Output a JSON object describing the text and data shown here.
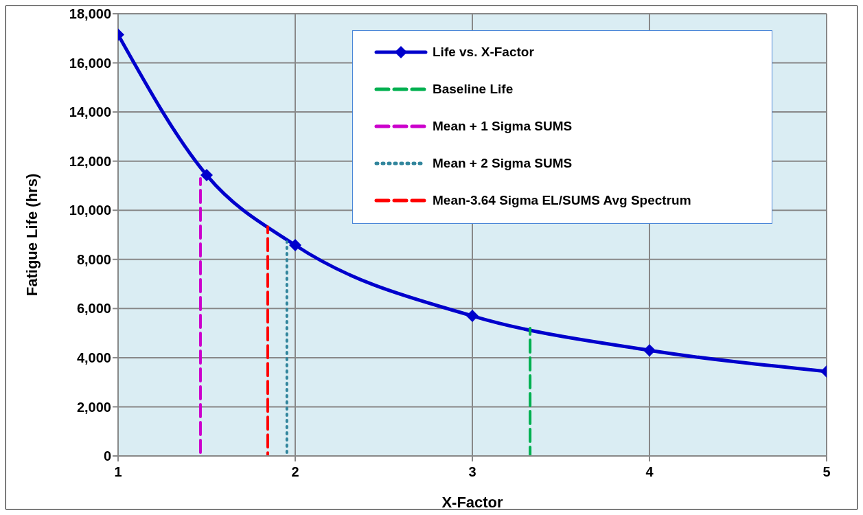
{
  "chart_data": {
    "type": "line",
    "xlabel": "X-Factor",
    "ylabel": "Fatigue Life (hrs)",
    "xlim": [
      1,
      5
    ],
    "xticks": [
      1,
      2,
      3,
      4,
      5
    ],
    "ylim": [
      0,
      18000
    ],
    "yticks": [
      0,
      {
        "value": 2000,
        "label": "2,000"
      },
      {
        "value": 4000,
        "label": "4,000"
      },
      {
        "value": 6000,
        "label": "6,000"
      },
      {
        "value": 8000,
        "label": "8,000"
      },
      {
        "value": 10000,
        "label": "10,000"
      },
      {
        "value": 12000,
        "label": "12,000"
      },
      {
        "value": 14000,
        "label": "14,000"
      },
      {
        "value": 16000,
        "label": "16,000"
      },
      {
        "value": 18000,
        "label": "18,000"
      }
    ],
    "grid": true,
    "legend": "top right",
    "series": [
      {
        "name": "Life vs. X-Factor",
        "color": "#0000cc",
        "x": [
          1,
          1.5,
          2,
          3,
          4,
          5
        ],
        "values": [
          17150,
          11430,
          8580,
          5700,
          4300,
          3440
        ],
        "marker": "diamond",
        "line_style": "solid"
      },
      {
        "name": "Baseline Life",
        "color": "#00b050",
        "x": [
          3.326,
          3.326
        ],
        "values": [
          0,
          5200
        ],
        "marker": "none",
        "line_style": "dashed"
      },
      {
        "name": "Mean + 1 Sigma SUMS",
        "color": "#cc00cc",
        "x": [
          1.465,
          1.465
        ],
        "values": [
          0,
          11290
        ],
        "marker": "none",
        "line_style": "dashed"
      },
      {
        "name": "Mean + 2 Sigma SUMS",
        "color": "#31859c",
        "x": [
          1.953,
          1.953
        ],
        "values": [
          0,
          8720
        ],
        "marker": "none",
        "line_style": "dotted"
      },
      {
        "name": "Mean-3.64 Sigma EL/SUMS Avg Spectrum",
        "color": "#ff0000",
        "x": [
          1.845,
          1.845
        ],
        "values": [
          0,
          9330
        ],
        "marker": "none",
        "line_style": "dashed"
      }
    ]
  }
}
